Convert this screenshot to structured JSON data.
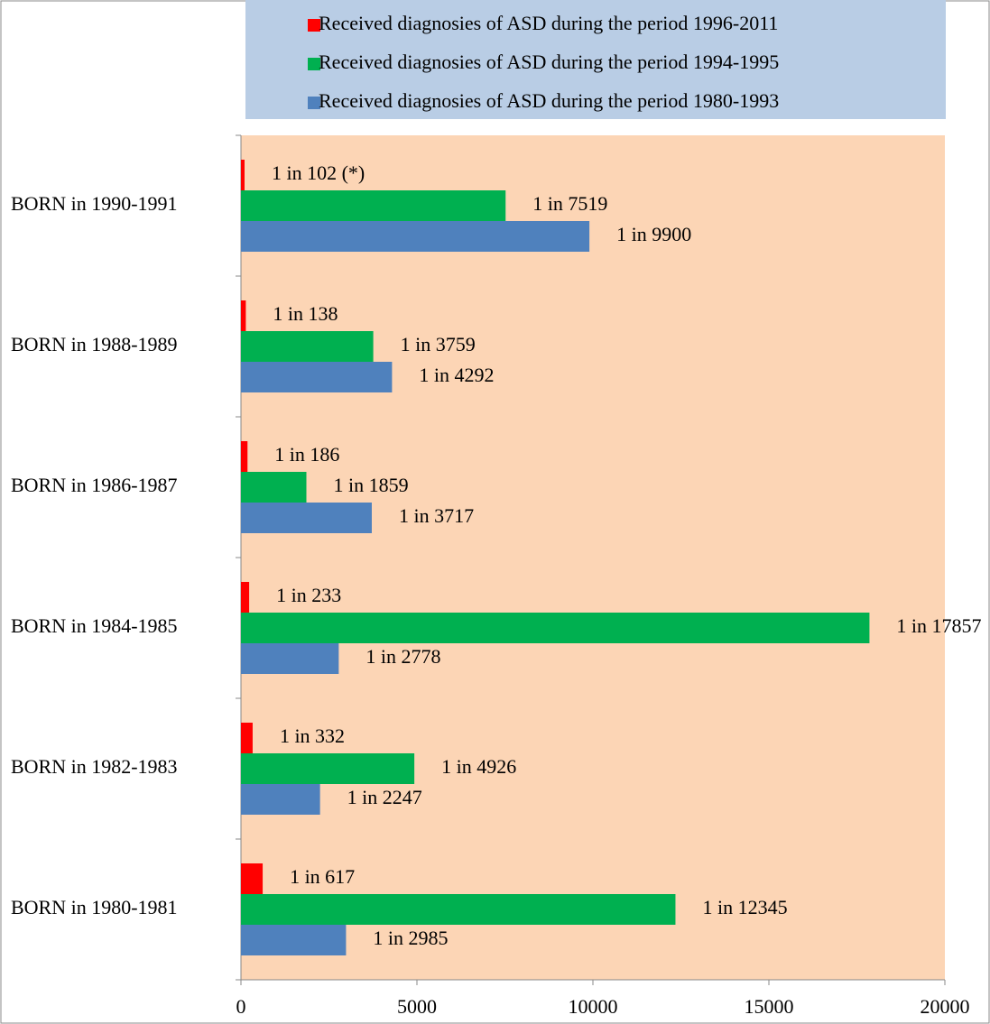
{
  "chart_data": {
    "type": "bar",
    "orientation": "horizontal",
    "categories": [
      "BORN in 1990-1991",
      "BORN in 1988-1989",
      "BORN in 1986-1987",
      "BORN in 1984-1985",
      "BORN in 1982-1983",
      "BORN in 1980-1981"
    ],
    "series": [
      {
        "name": "Received diagnosies of ASD during the period 1996-2011",
        "color": "#ff0000",
        "values": [
          102,
          138,
          186,
          233,
          332,
          617
        ],
        "value_labels": [
          "1 in 102 (*)",
          "1 in 138",
          "1 in 186",
          "1 in 233",
          "1 in 332",
          "1 in 617"
        ]
      },
      {
        "name": "Received diagnosies of ASD during the period 1994-1995",
        "color": "#00b050",
        "values": [
          7519,
          3759,
          1859,
          17857,
          4926,
          12345
        ],
        "value_labels": [
          "1 in 7519",
          "1 in 3759",
          "1 in 1859",
          "1 in 17857",
          "1 in 4926",
          "1 in 12345"
        ]
      },
      {
        "name": "Received diagnosies of ASD during the period 1980-1993",
        "color": "#4f81bd",
        "values": [
          9900,
          4292,
          3717,
          2778,
          2247,
          2985
        ],
        "value_labels": [
          "1 in 9900",
          "1 in 4292",
          "1 in 3717",
          "1 in 2778",
          "1 in 2247",
          "1 in 2985"
        ]
      }
    ],
    "xlim": [
      0,
      20000
    ],
    "xticks": [
      0,
      5000,
      10000,
      15000,
      20000
    ],
    "legend": "top",
    "plot_background": "#fcd5b5",
    "legend_background": "#b9cde5"
  }
}
